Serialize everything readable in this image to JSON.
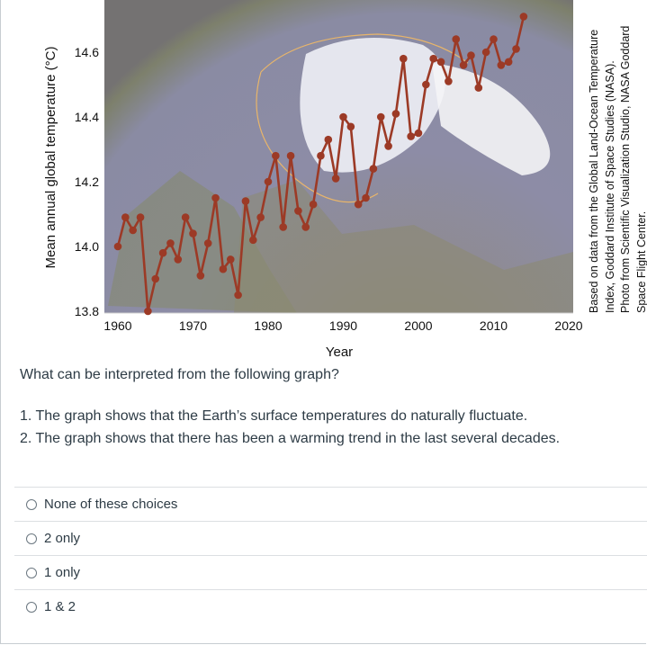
{
  "chart_data": {
    "type": "line",
    "xlabel": "Year",
    "ylabel": "Mean annual global temperature (°C)",
    "xlim": [
      1955,
      2020
    ],
    "ylim": [
      13.8,
      14.75
    ],
    "xticks": [
      "1960",
      "1970",
      "1980",
      "1990",
      "2000",
      "2010",
      "2020"
    ],
    "yticks": [
      "13.8",
      "14.0",
      "14.2",
      "14.4",
      "14.6"
    ],
    "grid": false,
    "background": "photo of Earth's Arctic region (globe)",
    "series_color": "#9c3a26",
    "x": [
      1960,
      1961,
      1962,
      1963,
      1964,
      1965,
      1966,
      1967,
      1968,
      1969,
      1970,
      1971,
      1972,
      1973,
      1974,
      1975,
      1976,
      1977,
      1978,
      1979,
      1980,
      1981,
      1982,
      1983,
      1984,
      1985,
      1986,
      1987,
      1988,
      1989,
      1990,
      1991,
      1992,
      1993,
      1994,
      1995,
      1996,
      1997,
      1998,
      1999,
      2000,
      2001,
      2002,
      2003,
      2004,
      2005,
      2006,
      2007,
      2008,
      2009,
      2010,
      2011,
      2012,
      2013,
      2014
    ],
    "values": [
      14.0,
      14.09,
      14.05,
      14.09,
      13.8,
      13.9,
      13.98,
      14.01,
      13.96,
      14.09,
      14.04,
      13.91,
      14.01,
      14.15,
      13.93,
      13.96,
      13.85,
      14.14,
      14.02,
      14.09,
      14.2,
      14.28,
      14.06,
      14.28,
      14.11,
      14.06,
      14.13,
      14.28,
      14.33,
      14.21,
      14.4,
      14.37,
      14.13,
      14.15,
      14.24,
      14.4,
      14.31,
      14.41,
      14.58,
      14.34,
      14.35,
      14.5,
      14.58,
      14.57,
      14.51,
      14.64,
      14.56,
      14.59,
      14.49,
      14.6,
      14.64,
      14.56,
      14.57,
      14.61,
      14.71
    ]
  },
  "credit": {
    "lines": [
      "Based on data from the Global Land-Ocean Temperature",
      "Index, Goddard Institute of Space Studies (NASA).",
      "Photo from Scientific Visualization Studio, NASA Goddard",
      "Space Flight Center."
    ]
  },
  "question": {
    "prompt": "What can be interpreted from the following graph?",
    "statements": [
      "1. The graph shows that the Earth’s surface temperatures do naturally fluctuate.",
      "2. The graph shows that there has been a warming trend in the last several decades."
    ],
    "options": [
      "None of these choices",
      "2 only",
      "1 only",
      "1 & 2"
    ]
  }
}
